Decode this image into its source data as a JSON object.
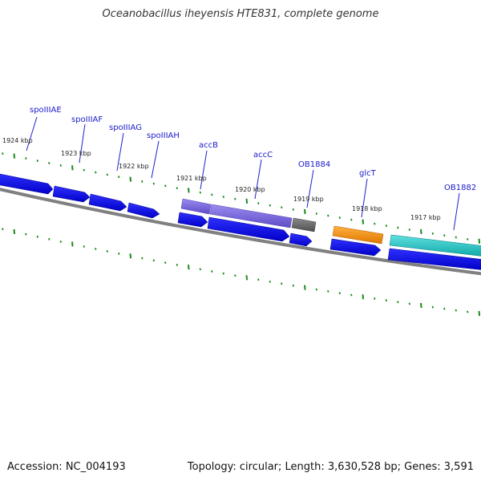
{
  "title": "Oceanobacillus iheyensis HTE831, complete genome",
  "footer": {
    "accession": "Accession: NC_004193",
    "stats": "Topology: circular; Length: 3,630,528 bp; Genes: 3,591"
  },
  "kbp_labels": [
    "1924 kbp",
    "1923 kbp",
    "1922 kbp",
    "1921 kbp",
    "1920 kbp",
    "1919 kbp",
    "1918 kbp",
    "1917 kbp"
  ],
  "gene_labels": [
    "spoIIIAE",
    "spoIIIAF",
    "spoIIIAG",
    "spoIIIAH",
    "accB",
    "accC",
    "OB1884",
    "glcT",
    "OB1882"
  ],
  "colors": {
    "backbone": "#808080",
    "forward_gene": "#0000ee",
    "accB_gene": "#7b68ee",
    "ob1884_gene": "#6e6e6e",
    "glcT_gene": "#ff8c00",
    "ob1882_gene": "#20c0c0",
    "tick": "#1a8a1a",
    "label": "#1a1acc"
  }
}
